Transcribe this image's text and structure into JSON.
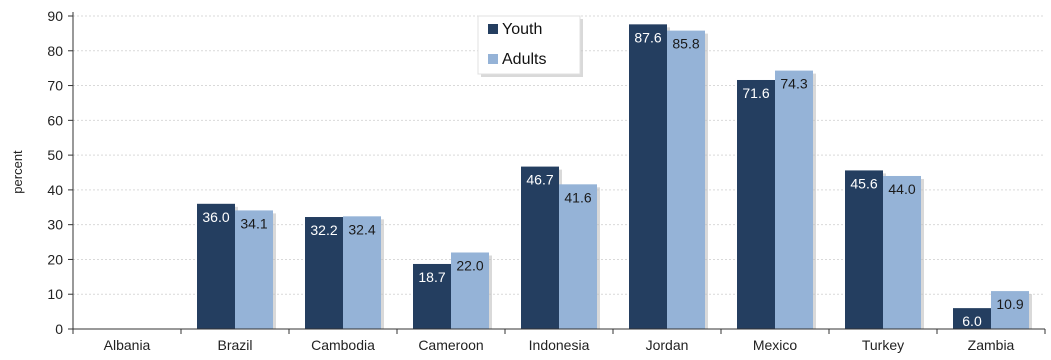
{
  "chart_data": {
    "type": "bar",
    "title": "",
    "xlabel": "",
    "ylabel": "percent",
    "ylim": [
      0,
      90
    ],
    "yticks": [
      0,
      10,
      20,
      30,
      40,
      50,
      60,
      70,
      80,
      90
    ],
    "grid": true,
    "legend_position": "top-center",
    "categories": [
      "Albania",
      "Brazil",
      "Cambodia",
      "Cameroon",
      "Indonesia",
      "Jordan",
      "Mexico",
      "Turkey",
      "Zambia"
    ],
    "series": [
      {
        "name": "Youth",
        "color": "#243e60",
        "values": [
          null,
          36.0,
          32.2,
          18.7,
          46.7,
          87.6,
          71.6,
          45.6,
          6.0
        ],
        "labels": [
          "",
          "36.0",
          "32.2",
          "18.7",
          "46.7",
          "87.6",
          "71.6",
          "45.6",
          "6.0"
        ]
      },
      {
        "name": "Adults",
        "color": "#95b3d7",
        "values": [
          null,
          34.1,
          32.4,
          22.0,
          41.6,
          85.8,
          74.3,
          44.0,
          10.9
        ],
        "labels": [
          "",
          "34.1",
          "32.4",
          "22.0",
          "41.6",
          "85.8",
          "74.3",
          "44.0",
          "10.9"
        ]
      }
    ]
  }
}
